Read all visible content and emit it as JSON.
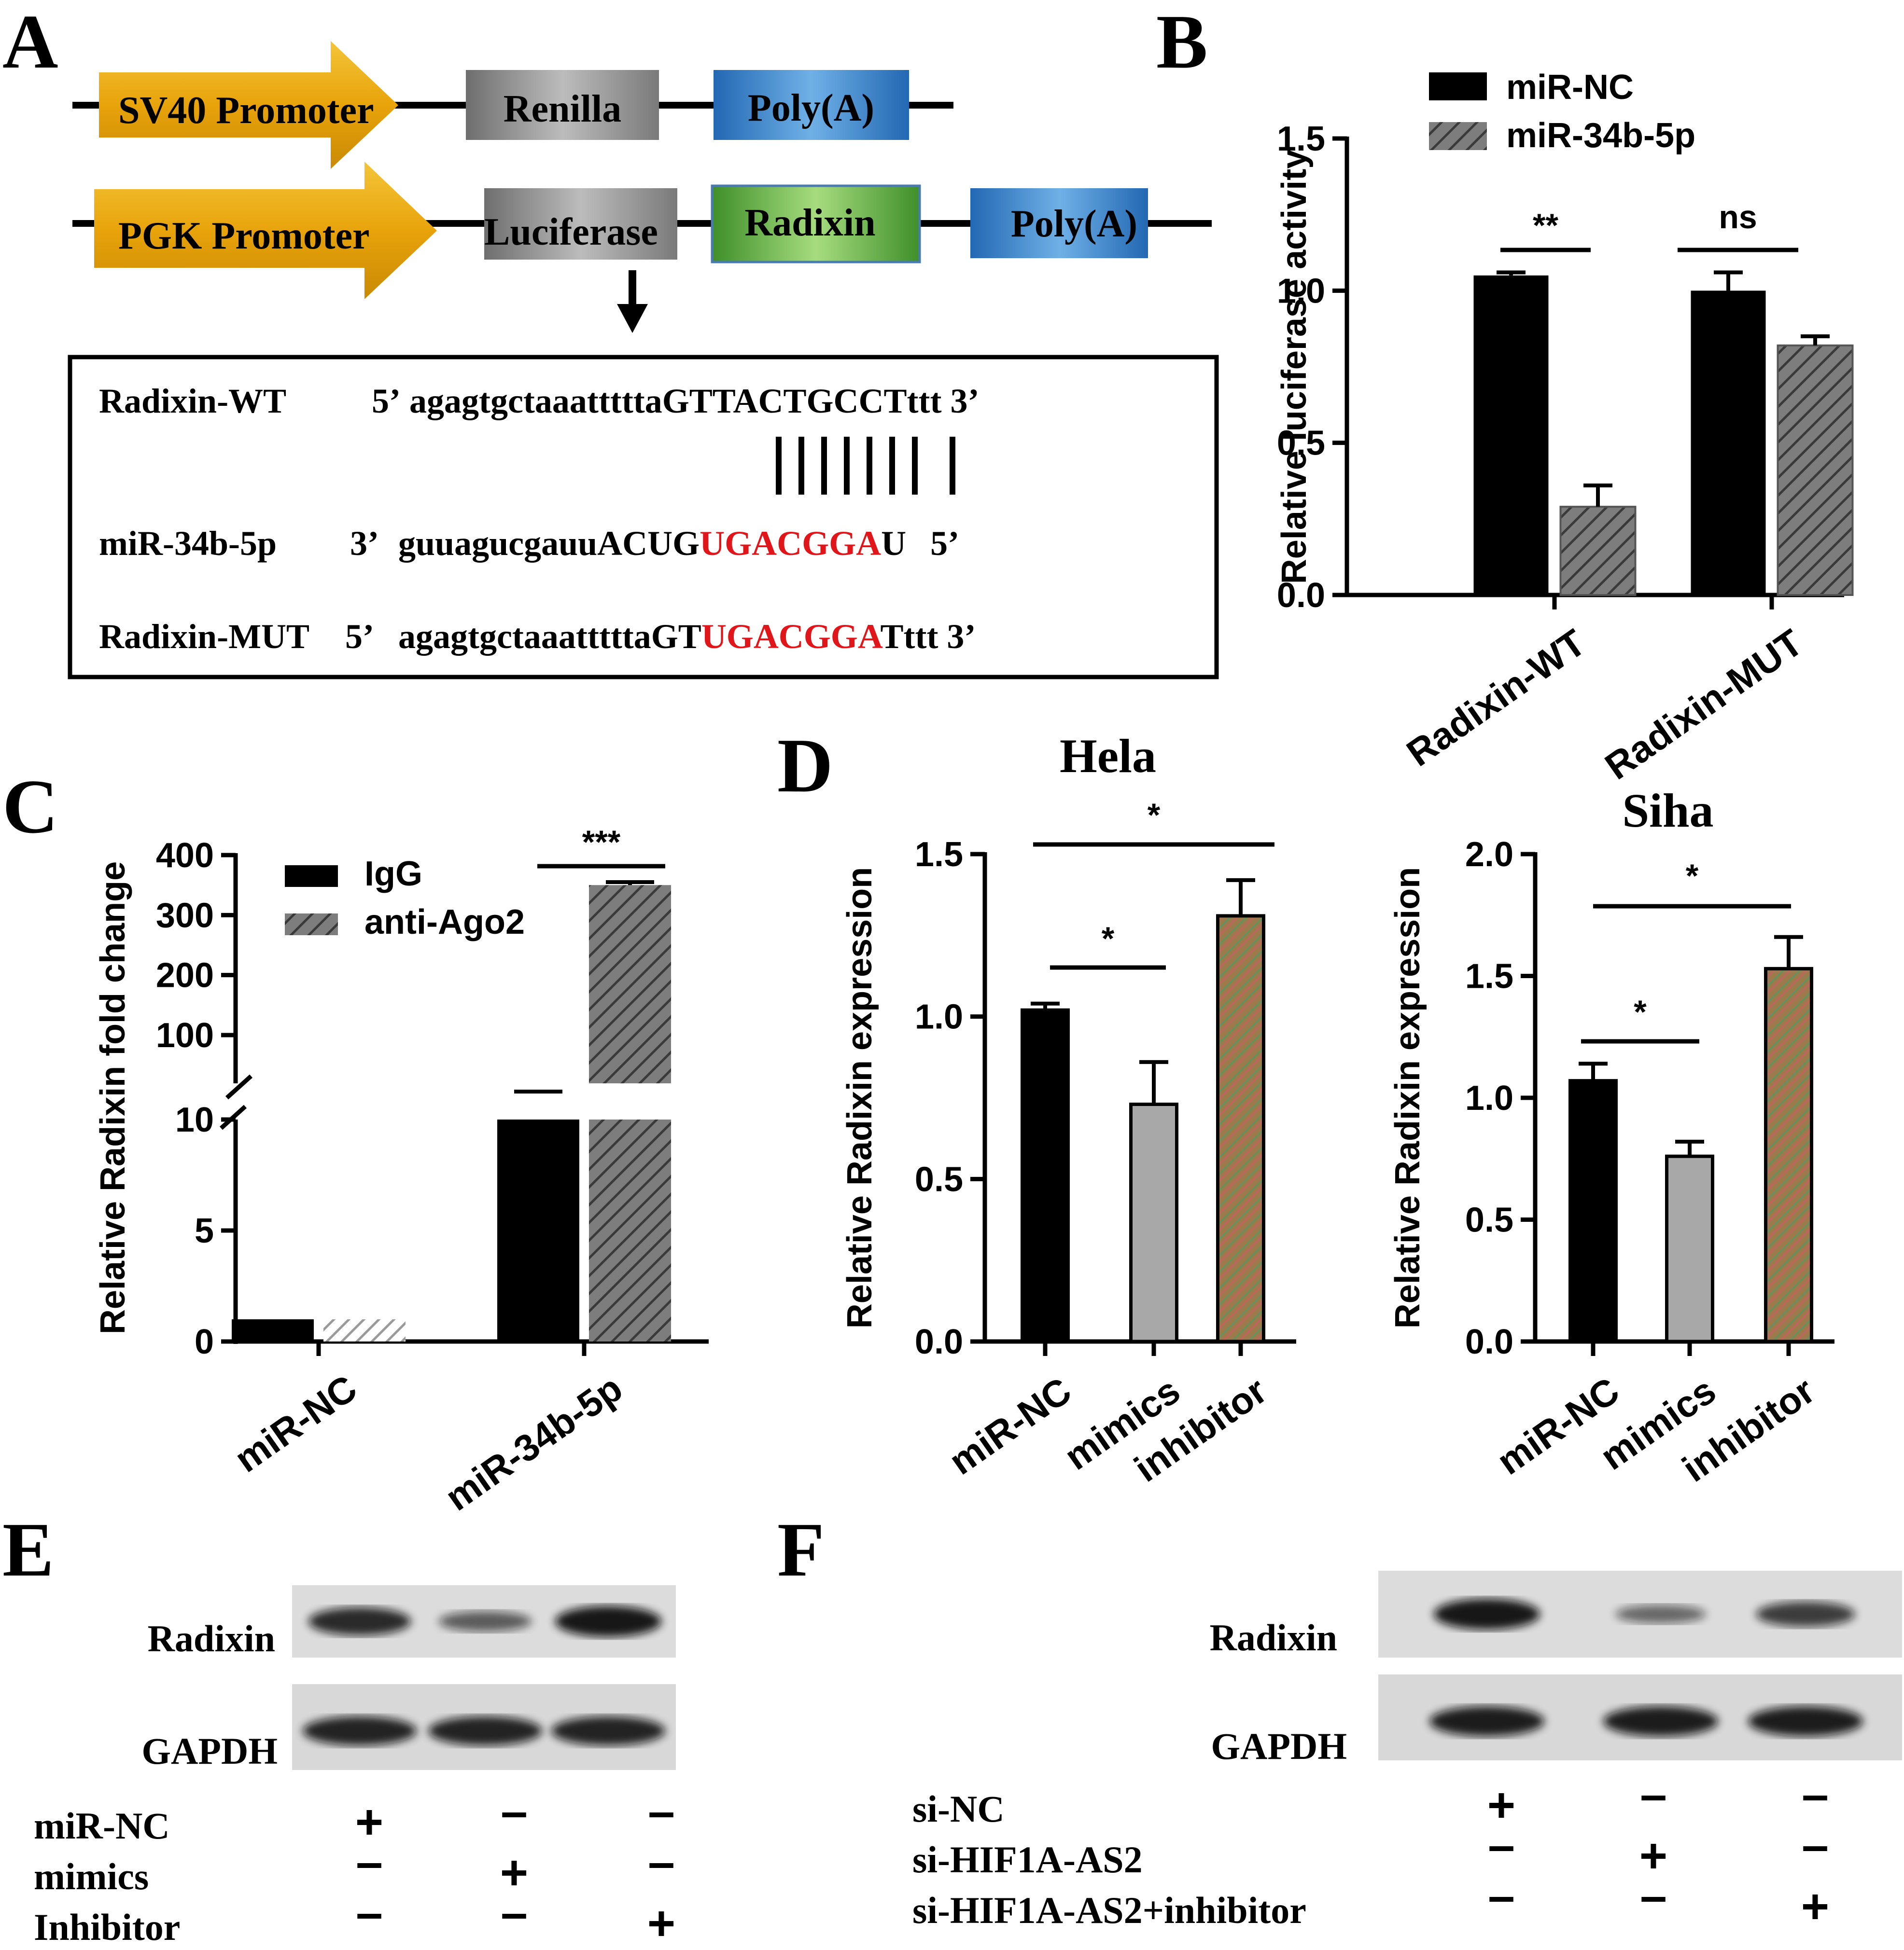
{
  "panel_letters": {
    "a": "A",
    "b": "B",
    "c": "C",
    "d": "D",
    "e": "E",
    "f": "F"
  },
  "panel_a": {
    "construct1": {
      "promoter": "SV40 Promoter",
      "gene": "Renilla",
      "polya": "Poly(A)"
    },
    "construct2": {
      "promoter": "PGK Promoter",
      "gene": "Luciferase",
      "utr": "Radixin",
      "polya": "Poly(A)"
    },
    "colors": {
      "promoter": "#e8a30a",
      "gene": "#8c8c8c",
      "polya": "#2f7fc8",
      "utr": "#5faa3a",
      "highlight": "#e0161b"
    },
    "seq_wt": {
      "label": "Radixin-WT",
      "end5": "5’",
      "body": "agagtgctaaattttta",
      "caps": "GTTACTGCCT",
      "tail": "ttt 3’"
    },
    "seq_mir": {
      "label": "miR-34b-5p",
      "end3": "3’",
      "body": "guuagucgauuACUG",
      "red": "UGACGGA",
      "tail": "U",
      "end5": "5’"
    },
    "seq_mut": {
      "label": "Radixin-MUT",
      "end5": "5’",
      "body": "agagtgctaaattttta",
      "pre": "GT",
      "red": "UGACGGA",
      "tail": "Tttt 3’"
    }
  },
  "chart_data": [
    {
      "panel": "B",
      "type": "bar",
      "ylabel": "Relative  luciferase activity",
      "ylim": [
        0,
        1.5
      ],
      "yticks": [
        "0.0",
        "0.5",
        "1.0",
        "1.5"
      ],
      "categories": [
        "Radixin-WT",
        "Radixin-MUT"
      ],
      "series": [
        {
          "name": "miR-NC",
          "values": [
            1.05,
            1.0
          ],
          "errors": [
            0.01,
            0.06
          ]
        },
        {
          "name": "miR-34b-5p",
          "values": [
            0.29,
            0.82
          ],
          "errors": [
            0.07,
            0.03
          ]
        }
      ],
      "significance": [
        "**",
        "ns"
      ],
      "legend_position": "top"
    },
    {
      "panel": "C",
      "type": "bar",
      "ylabel": "Relative Radixin fold change",
      "yticks": [
        "0",
        "5",
        "10",
        "100",
        "200",
        "300",
        "400"
      ],
      "axis_break": true,
      "categories": [
        "miR-NC",
        "miR-34b-5p"
      ],
      "series": [
        {
          "name": "IgG",
          "values": [
            1.0,
            12.0
          ],
          "errors": [
            0.0,
            1.0
          ]
        },
        {
          "name": "anti-Ago2",
          "values": [
            1.0,
            350
          ],
          "errors": [
            0.0,
            5
          ]
        }
      ],
      "significance": [
        "***"
      ],
      "legend_position": "top-left"
    },
    {
      "panel": "D",
      "type": "bar",
      "title": "Hela",
      "ylabel": "Relative  Radixin expression",
      "ylim": [
        0,
        1.5
      ],
      "yticks": [
        "0.0",
        "0.5",
        "1.0",
        "1.5"
      ],
      "categories": [
        "miR-NC",
        "mimics",
        "inhibitor"
      ],
      "values": [
        1.02,
        0.73,
        1.31
      ],
      "errors": [
        0.02,
        0.13,
        0.11
      ],
      "significance": [
        "*",
        "*"
      ]
    },
    {
      "panel": "D",
      "type": "bar",
      "title": "Siha",
      "ylabel": "Relative  Radixin expression",
      "ylim": [
        0,
        2.0
      ],
      "yticks": [
        "0.0",
        "0.5",
        "1.0",
        "1.5",
        "2.0"
      ],
      "categories": [
        "miR-NC",
        "mimics",
        "inhibitor"
      ],
      "values": [
        1.07,
        0.76,
        1.53
      ],
      "errors": [
        0.07,
        0.06,
        0.13
      ],
      "significance": [
        "*",
        "*"
      ]
    }
  ],
  "panel_e": {
    "bands": [
      "Radixin",
      "GAPDH"
    ],
    "radixin_intensity": [
      0.85,
      0.45,
      1.0
    ],
    "gapdh_intensity": [
      0.9,
      0.9,
      0.9
    ],
    "rows": [
      {
        "label": "miR-NC",
        "signs": [
          "+",
          "-",
          "-"
        ]
      },
      {
        "label": "mimics",
        "signs": [
          "-",
          "+",
          "-"
        ]
      },
      {
        "label": "Inhibitor",
        "signs": [
          "-",
          "-",
          "+"
        ]
      }
    ]
  },
  "panel_f": {
    "bands": [
      "Radixin",
      "GAPDH"
    ],
    "radixin_intensity": [
      1.0,
      0.35,
      0.7
    ],
    "gapdh_intensity": [
      0.95,
      0.95,
      0.95
    ],
    "rows": [
      {
        "label": "si-NC",
        "signs": [
          "+",
          "-",
          "-"
        ]
      },
      {
        "label": "si-HIF1A-AS2",
        "signs": [
          "-",
          "+",
          "-"
        ]
      },
      {
        "label": "si-HIF1A-AS2+inhibitor",
        "signs": [
          "-",
          "-",
          "+"
        ]
      }
    ]
  }
}
